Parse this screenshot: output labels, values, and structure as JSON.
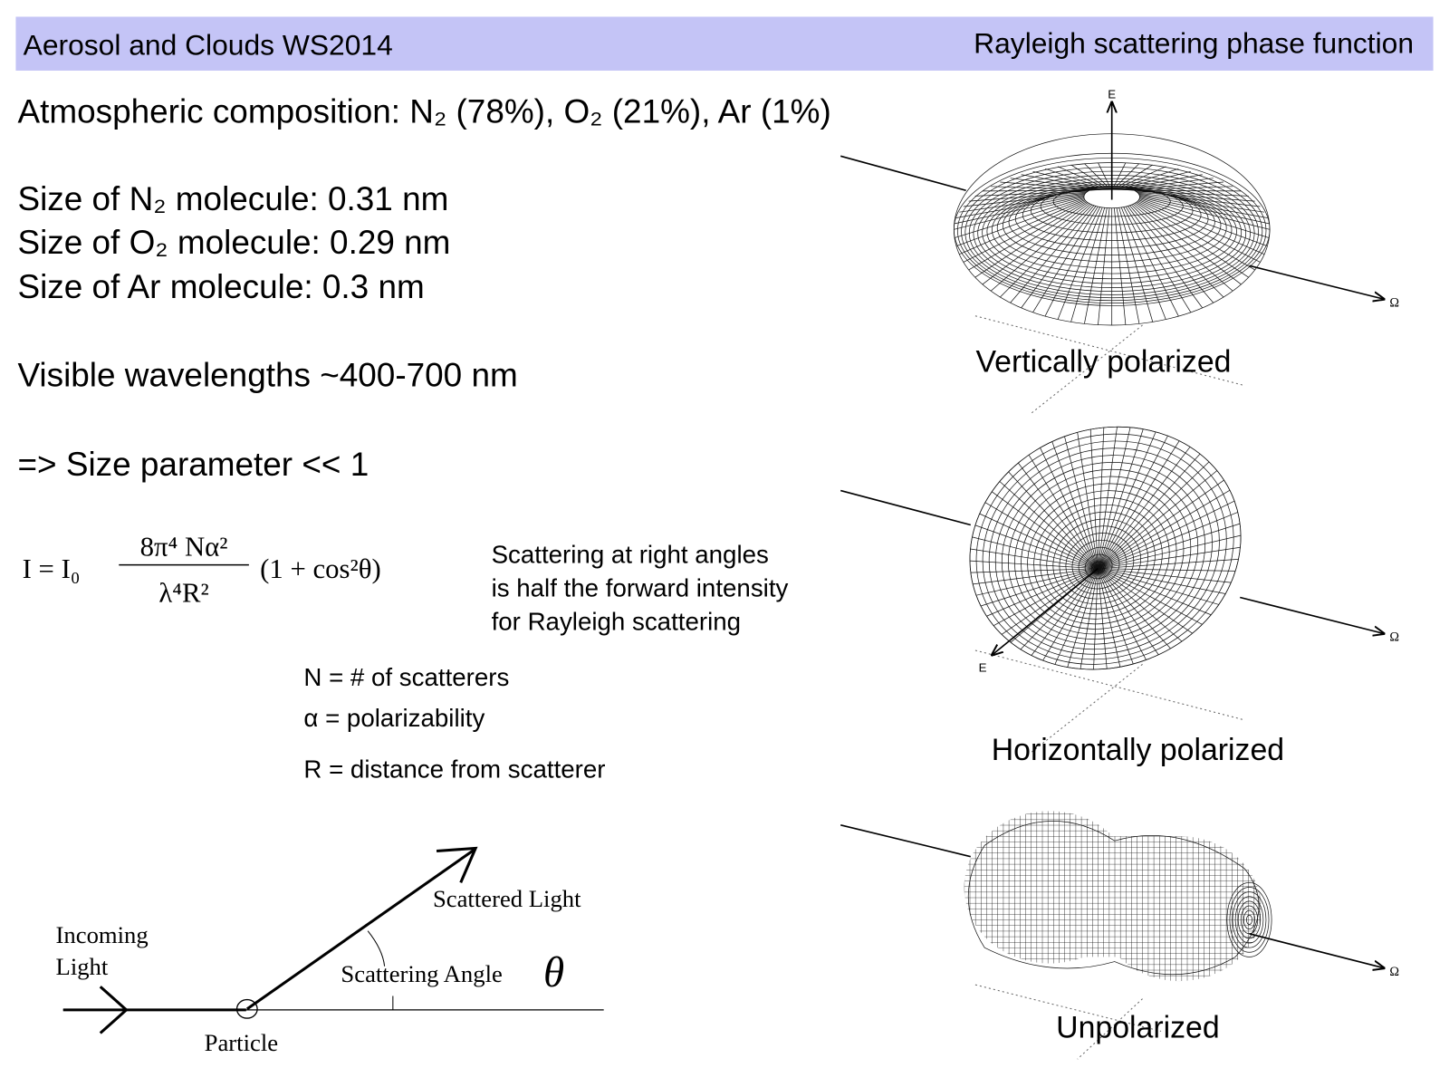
{
  "header": {
    "left": "Aerosol and Clouds WS2014",
    "right": "Rayleigh scattering phase function"
  },
  "facts": [
    "Atmospheric composition: N₂ (78%), O₂ (21%), Ar (1%)",
    "Size of N₂ molecule: 0.31 nm",
    "Size of O₂ molecule: 0.29 nm",
    "Size of Ar molecule: 0.3 nm",
    "Visible wavelengths ~400-700 nm",
    "=> Size parameter << 1"
  ],
  "formula": {
    "lhs": "I = I₀",
    "numerator": "8π⁴ Nα²",
    "denominator": "λ⁴R²",
    "factor": "(1 + cos²θ)"
  },
  "note": [
    "Scattering at right angles",
    "is half the forward intensity",
    "for Rayleigh scattering"
  ],
  "definitions": [
    "N = # of scatterers",
    "α = polarizability",
    "R = distance from scatterer"
  ],
  "diagram": {
    "incoming": [
      "Incoming",
      "Light"
    ],
    "scattered": "Scattered Light",
    "angle": "Scattering Angle",
    "theta": "θ",
    "particle": "Particle"
  },
  "plots": [
    {
      "caption": "Vertically polarized",
      "e": "E",
      "omega": "Ω"
    },
    {
      "caption": "Horizontally polarized",
      "e": "E",
      "omega": "Ω"
    },
    {
      "caption": "Unpolarized",
      "omega": "Ω"
    }
  ]
}
